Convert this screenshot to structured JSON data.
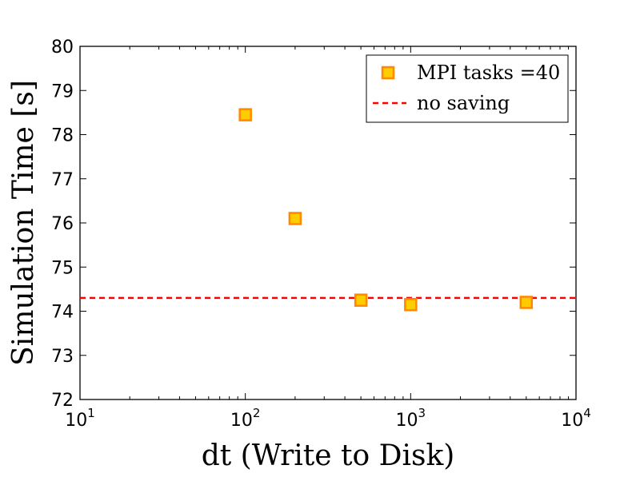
{
  "chart_data": {
    "type": "scatter",
    "title": "",
    "xlabel": "dt (Write to Disk)",
    "ylabel": "Simulation Time [s]",
    "xscale": "log",
    "xlim": [
      10,
      10000
    ],
    "ylim": [
      72,
      80
    ],
    "x_ticks": [
      10,
      100,
      1000,
      10000
    ],
    "x_tick_labels": [
      {
        "base": "10",
        "exp": "1"
      },
      {
        "base": "10",
        "exp": "2"
      },
      {
        "base": "10",
        "exp": "3"
      },
      {
        "base": "10",
        "exp": "4"
      }
    ],
    "y_ticks": [
      "72",
      "73",
      "74",
      "75",
      "76",
      "77",
      "78",
      "79",
      "80"
    ],
    "grid": false,
    "legend_position": "top-right",
    "series": [
      {
        "name": "MPI tasks =40",
        "marker": "square",
        "face_color": "#ffcc00",
        "edge_color": "#ff8800",
        "points": [
          {
            "x": 100,
            "y": 78.45
          },
          {
            "x": 200,
            "y": 76.1
          },
          {
            "x": 500,
            "y": 74.25
          },
          {
            "x": 1000,
            "y": 74.15
          },
          {
            "x": 5000,
            "y": 74.2
          }
        ]
      }
    ],
    "reference_lines": [
      {
        "name": "no saving",
        "y": 74.3,
        "color": "#ff0000",
        "style": "dashed"
      }
    ]
  }
}
